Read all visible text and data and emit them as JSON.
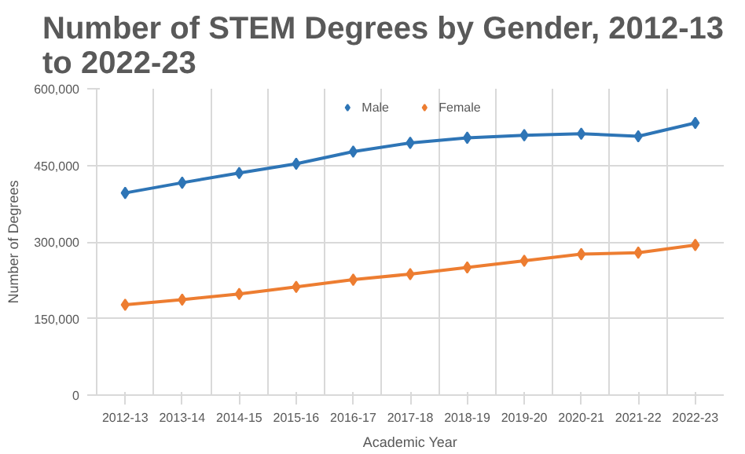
{
  "chart_data": {
    "type": "line",
    "title": "Number of STEM Degrees by Gender, 2012-13\nto 2022-23",
    "xlabel": "Academic Year",
    "ylabel": "Number of Degrees",
    "categories": [
      "2012-13",
      "2013-14",
      "2014-15",
      "2015-16",
      "2016-17",
      "2017-18",
      "2018-19",
      "2019-20",
      "2020-21",
      "2021-22",
      "2022-23"
    ],
    "series": [
      {
        "name": "Male",
        "color": "#2e75b6",
        "values": [
          396000,
          416000,
          435000,
          453000,
          477000,
          494000,
          504000,
          509000,
          512000,
          507000,
          533000
        ]
      },
      {
        "name": "Female",
        "color": "#ed7d31",
        "values": [
          177000,
          187000,
          198000,
          212000,
          226000,
          237000,
          250000,
          263000,
          276000,
          279000,
          294000
        ]
      }
    ],
    "ylim": [
      0,
      600000
    ],
    "yticks": [
      0,
      {
        "value": 150000,
        "label": "150,000"
      },
      {
        "value": 300000,
        "label": "300,000"
      },
      {
        "value": 450000,
        "label": "450,000"
      },
      {
        "value": 600000,
        "label": "600,000"
      }
    ],
    "grid": true,
    "legend": "top",
    "marker": "diamond",
    "line_style": "solid"
  }
}
